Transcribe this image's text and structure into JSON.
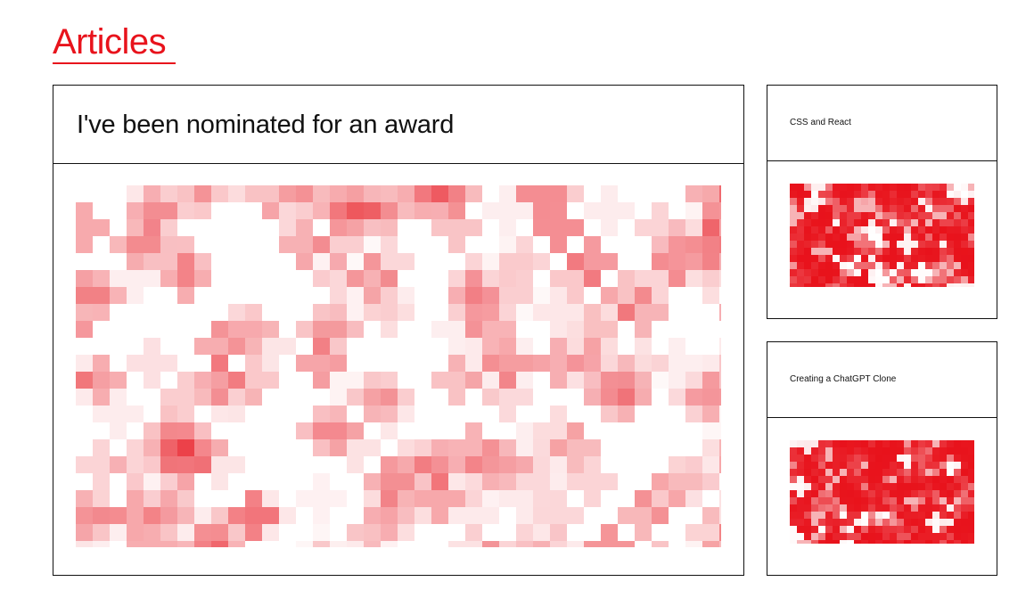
{
  "section": {
    "title": "Articles"
  },
  "featured": {
    "title": "I've been nominated for an award"
  },
  "articles": [
    {
      "title": "CSS and React"
    },
    {
      "title": "Creating a ChatGPT Clone"
    }
  ],
  "colors": {
    "accent": "#e8131c",
    "border": "#111111",
    "background": "#ffffff"
  }
}
